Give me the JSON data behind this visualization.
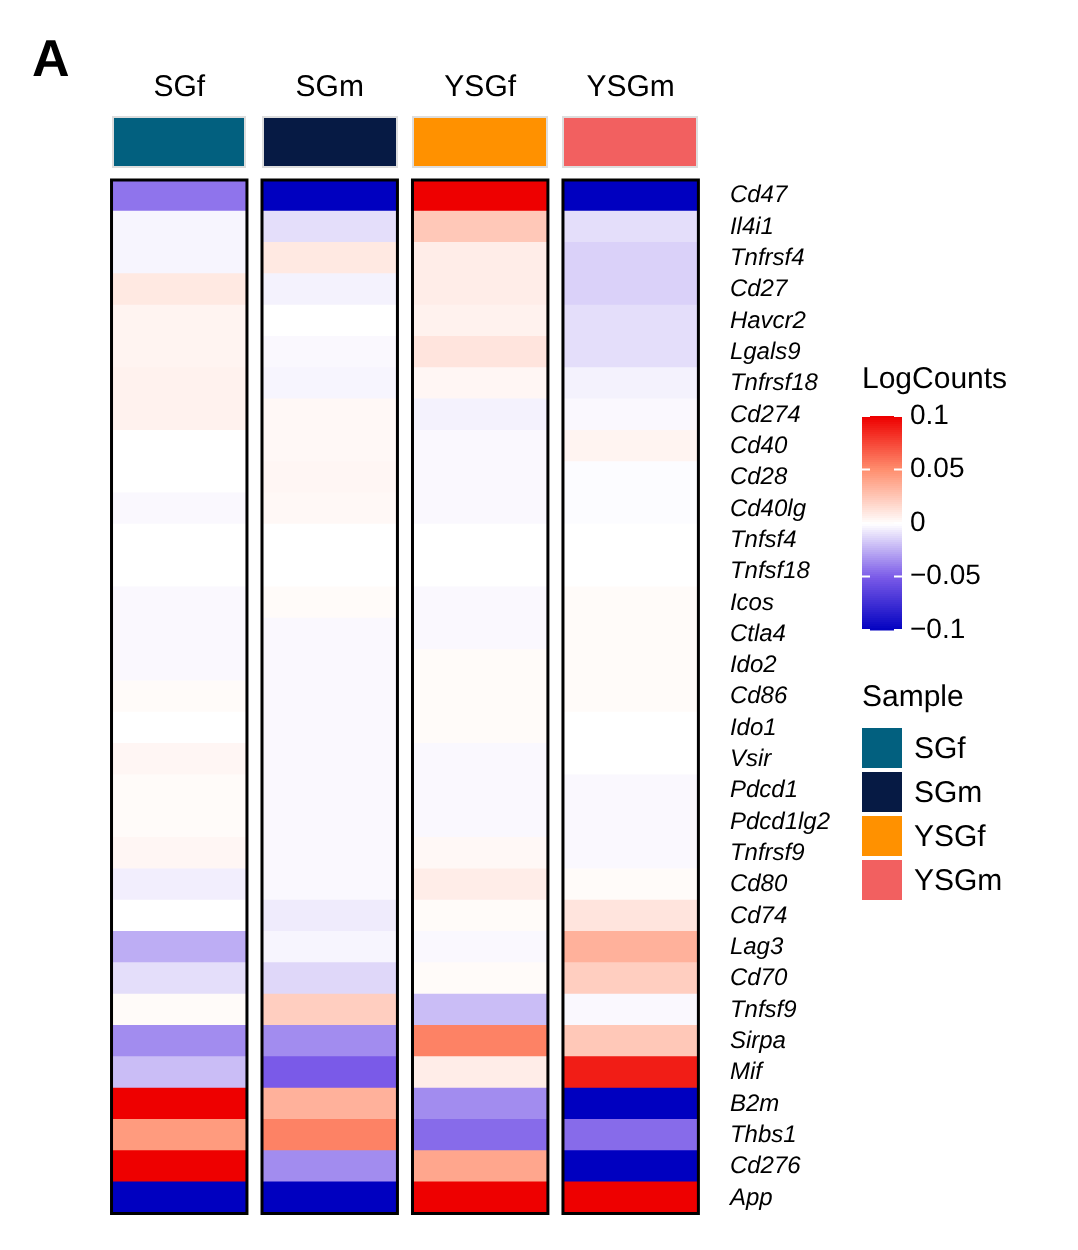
{
  "chart_data": {
    "type": "heatmap",
    "annotations": [
      "A"
    ],
    "clabel": "LogCounts",
    "legend_title": "Sample",
    "categories": [
      "SGf",
      "SGm",
      "YSGf",
      "YSGm"
    ],
    "colors": [
      "#02607f",
      "#061a44",
      "#ff9100",
      "#f26060"
    ],
    "y_categories": [
      "Cd47",
      "Il4i1",
      "Tnfrsf4",
      "Cd27",
      "Havcr2",
      "Lgals9",
      "Tnfrsf18",
      "Cd274",
      "Cd40",
      "Cd28",
      "Cd40lg",
      "Tnfsf4",
      "Tnfsf18",
      "Icos",
      "Ctla4",
      "Ido2",
      "Cd86",
      "Ido1",
      "Vsir",
      "Pdcd1",
      "Pdcd1lg2",
      "Tnfrsf9",
      "Cd80",
      "Cd74",
      "Lag3",
      "Cd70",
      "Tnfsf9",
      "Sirpa",
      "Mif",
      "B2m",
      "Thbs1",
      "Cd276",
      "App"
    ],
    "cells": [
      [
        -0.042,
        -0.1,
        0.1,
        -0.1
      ],
      [
        -0.003,
        -0.01,
        0.025,
        -0.01
      ],
      [
        -0.003,
        0.01,
        0.008,
        -0.014
      ],
      [
        0.01,
        -0.004,
        0.008,
        -0.014
      ],
      [
        0.005,
        0,
        0.006,
        -0.01
      ],
      [
        0.005,
        -0.002,
        0.012,
        -0.01
      ],
      [
        0.006,
        -0.003,
        0.004,
        -0.004
      ],
      [
        0.006,
        0.003,
        -0.004,
        -0.002
      ],
      [
        0,
        0.003,
        -0.002,
        0.005
      ],
      [
        0,
        0.004,
        -0.002,
        -0.001
      ],
      [
        -0.002,
        0.003,
        -0.002,
        -0.001
      ],
      [
        0,
        0,
        0,
        0
      ],
      [
        0,
        0,
        0,
        0
      ],
      [
        -0.002,
        0.002,
        -0.002,
        0.002
      ],
      [
        -0.002,
        -0.002,
        -0.002,
        0.002
      ],
      [
        -0.002,
        -0.002,
        0.002,
        0.002
      ],
      [
        0.002,
        -0.002,
        0.002,
        0.002
      ],
      [
        0,
        -0.002,
        0.002,
        0
      ],
      [
        0.004,
        -0.002,
        -0.002,
        0
      ],
      [
        0.002,
        -0.002,
        -0.002,
        -0.002
      ],
      [
        0.002,
        -0.002,
        -0.002,
        -0.002
      ],
      [
        0.004,
        -0.002,
        0.003,
        -0.002
      ],
      [
        -0.005,
        -0.002,
        0.008,
        0.002
      ],
      [
        0,
        -0.006,
        0.002,
        0.012
      ],
      [
        -0.025,
        -0.003,
        -0.002,
        0.035
      ],
      [
        -0.01,
        -0.012,
        0.002,
        0.022
      ],
      [
        0.002,
        0.022,
        -0.02,
        -0.002
      ],
      [
        -0.035,
        -0.035,
        0.055,
        0.025
      ],
      [
        -0.02,
        -0.05,
        0.008,
        0.09
      ],
      [
        0.1,
        0.035,
        -0.035,
        -0.1
      ],
      [
        0.045,
        0.055,
        -0.045,
        -0.045
      ],
      [
        0.1,
        -0.035,
        0.04,
        -0.1
      ],
      [
        -0.1,
        -0.1,
        0.1,
        0.1
      ]
    ],
    "clim": [
      -0.1,
      0.1
    ],
    "cticks": [
      0.1,
      0.05,
      0,
      {
        "value": -0.05,
        "label": "−0.05"
      },
      {
        "value": -0.1,
        "label": "−0.1"
      }
    ]
  }
}
